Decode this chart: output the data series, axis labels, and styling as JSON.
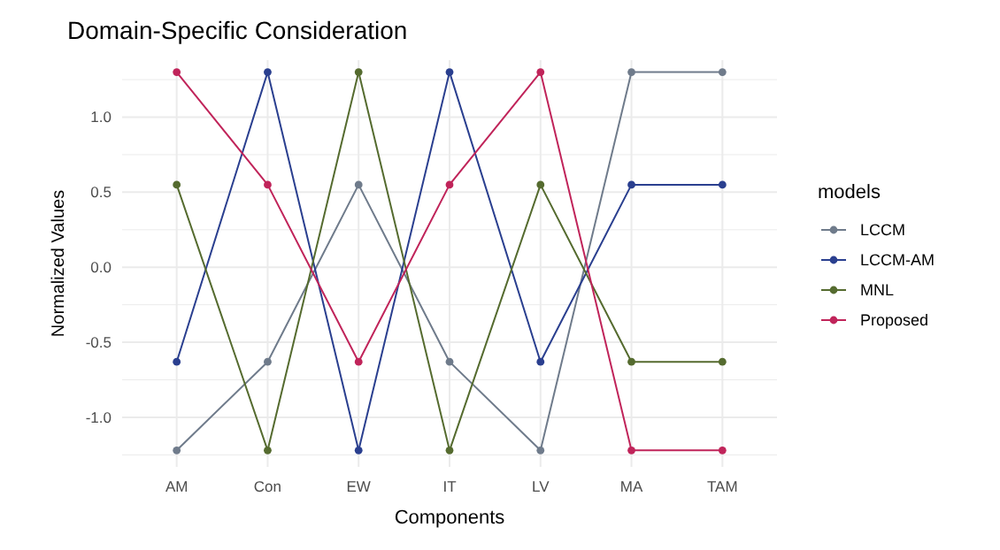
{
  "chart_data": {
    "type": "line",
    "title": "Domain-Specific Consideration",
    "xlabel": "Components",
    "ylabel": "Normalized Values",
    "legend_title": "models",
    "categories": [
      "AM",
      "Con",
      "EW",
      "IT",
      "LV",
      "MA",
      "TAM"
    ],
    "series": [
      {
        "name": "LCCM",
        "color": "#6f7b8b",
        "values": [
          -1.22,
          -0.63,
          0.55,
          -0.63,
          -1.22,
          1.3,
          1.3
        ]
      },
      {
        "name": "LCCM-AM",
        "color": "#2a3f8f",
        "values": [
          -0.63,
          1.3,
          -1.22,
          1.3,
          -0.63,
          0.55,
          0.55
        ]
      },
      {
        "name": "MNL",
        "color": "#556b2f",
        "values": [
          0.55,
          -1.22,
          1.3,
          -1.22,
          0.55,
          -0.63,
          -0.63
        ]
      },
      {
        "name": "Proposed",
        "color": "#c0245a",
        "values": [
          1.3,
          0.55,
          -0.63,
          0.55,
          1.3,
          -1.22,
          -1.22
        ]
      }
    ],
    "ylim": [
      -1.33,
      1.38
    ],
    "yticks": [
      {
        "value": -1.25,
        "label": null
      },
      {
        "value": -1,
        "label": "-1.0"
      },
      {
        "value": -0.75,
        "label": null
      },
      -0.5,
      {
        "value": -0.25,
        "label": null
      },
      {
        "value": 0,
        "label": "0.0"
      },
      {
        "value": 0.25,
        "label": null
      },
      0.5,
      {
        "value": 0.75,
        "label": null
      },
      {
        "value": 1,
        "label": "1.0"
      },
      {
        "value": 1.25,
        "label": null
      }
    ],
    "grid": true,
    "legend": "right",
    "marker": "circle",
    "line_style": "solid"
  }
}
